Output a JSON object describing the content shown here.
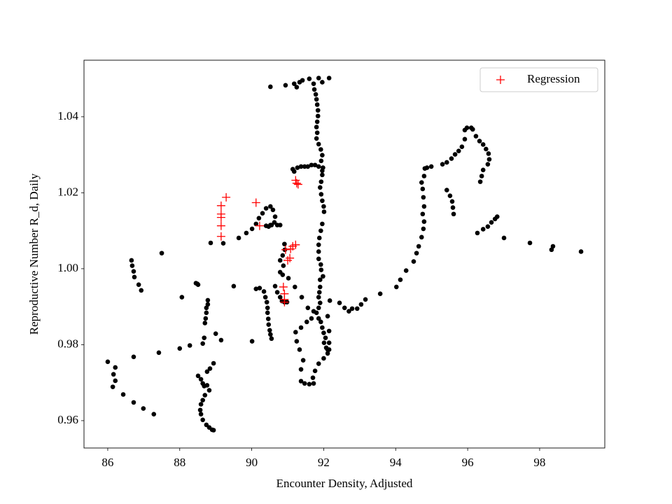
{
  "chart_data": {
    "type": "scatter",
    "x_label": "Encounter Density, Adjusted",
    "y_label": "Reproductive Number R_d, Daily",
    "xlim": [
      85.34,
      99.81
    ],
    "ylim": [
      0.9528,
      1.0549
    ],
    "xticks": [
      86,
      88,
      90,
      92,
      94,
      96,
      98
    ],
    "yticks": [
      0.96,
      0.98,
      {
        "value": 1,
        "label": "1.00"
      },
      1.02,
      1.04
    ],
    "grid": false,
    "legend": "upper right",
    "series": [
      {
        "color": "#000000",
        "marker": "dot",
        "x": [
          86.0,
          86.21,
          86.16,
          86.21,
          86.14,
          86.43,
          86.72,
          86.99,
          87.28,
          86.66,
          86.68,
          86.72,
          86.74,
          86.86,
          86.93,
          87.5,
          86.72,
          87.42,
          88.06,
          88.0,
          88.28,
          88.45,
          88.49,
          88.51,
          88.68,
          88.64,
          88.7,
          88.72,
          88.74,
          88.74,
          88.78,
          88.78,
          89.0,
          89.15,
          88.94,
          88.84,
          88.76,
          88.51,
          88.59,
          88.64,
          88.68,
          88.76,
          88.82,
          88.7,
          88.64,
          88.59,
          88.57,
          88.59,
          88.64,
          88.74,
          88.82,
          88.9,
          88.94,
          88.86,
          89.21,
          89.5,
          89.64,
          89.85,
          90.01,
          90.12,
          90.2,
          90.3,
          90.4,
          90.52,
          90.59,
          90.65,
          90.63,
          90.55,
          90.47,
          90.4,
          90.52,
          90.71,
          90.79,
          90.12,
          90.22,
          90.34,
          90.38,
          90.42,
          90.44,
          90.44,
          90.46,
          90.47,
          90.5,
          90.52,
          90.55,
          90.01,
          90.65,
          90.71,
          90.79,
          90.84,
          90.91,
          90.98,
          90.86,
          90.79,
          90.88,
          90.79,
          90.86,
          90.92,
          90.91,
          90.52,
          90.94,
          91.18,
          91.25,
          91.33,
          91.41,
          91.14,
          91.18,
          91.27,
          91.37,
          91.47,
          91.56,
          91.66,
          91.76,
          91.86,
          91.96,
          91.6,
          91.72,
          91.74,
          91.78,
          91.8,
          91.82,
          91.84,
          91.84,
          91.82,
          91.8,
          91.82,
          91.8,
          91.86,
          91.92,
          91.96,
          91.93,
          91.98,
          91.96,
          91.93,
          91.9,
          91.93,
          91.96,
          92.0,
          92.01,
          91.96,
          91.92,
          91.88,
          91.86,
          91.86,
          91.86,
          91.92,
          91.93,
          91.98,
          91.9,
          91.9,
          91.88,
          91.86,
          91.9,
          91.86,
          91.8,
          91.86,
          91.92,
          91.96,
          92.0,
          92.05,
          92.01,
          92.07,
          92.15,
          92.11,
          92.0,
          91.86,
          91.76,
          91.7,
          91.72,
          91.6,
          91.47,
          91.37,
          91.37,
          91.43,
          91.33,
          91.25,
          91.22,
          91.37,
          91.53,
          91.66,
          91.72,
          91.56,
          91.39,
          91.2,
          91.02,
          92.15,
          91.86,
          91.96,
          92.11,
          92.15,
          92.15,
          92.11,
          92.17,
          92.44,
          92.58,
          92.7,
          92.79,
          92.93,
          93.04,
          93.16,
          93.57,
          94.02,
          94.13,
          94.29,
          94.5,
          94.58,
          94.64,
          94.72,
          94.77,
          94.79,
          94.75,
          94.79,
          94.77,
          94.75,
          94.72,
          94.79,
          94.81,
          94.87,
          94.99,
          95.3,
          95.42,
          95.55,
          95.65,
          95.75,
          95.84,
          95.92,
          95.92,
          95.98,
          96.1,
          96.14,
          96.23,
          96.33,
          96.43,
          96.51,
          96.58,
          96.6,
          96.56,
          96.43,
          96.39,
          96.35,
          95.42,
          95.51,
          95.57,
          95.59,
          95.61,
          96.27,
          96.43,
          96.56,
          96.66,
          96.76,
          96.82,
          97.01,
          97.73,
          98.33,
          98.37,
          99.15
        ],
        "values": [
          0.9755,
          0.974,
          0.9722,
          0.9705,
          0.9689,
          0.9669,
          0.9648,
          0.9632,
          0.9617,
          1.0022,
          1.0008,
          0.9993,
          0.9978,
          0.9958,
          0.9943,
          1.0041,
          0.9768,
          0.9779,
          0.9925,
          0.979,
          0.9798,
          0.9962,
          0.996,
          0.9958,
          0.9818,
          0.9803,
          0.9857,
          0.9869,
          0.9884,
          0.9897,
          0.9906,
          0.9917,
          0.9829,
          0.9812,
          0.9751,
          0.9737,
          0.9729,
          0.9718,
          0.9709,
          0.9698,
          0.9691,
          0.9693,
          0.968,
          0.9667,
          0.9654,
          0.9643,
          0.9628,
          0.9617,
          0.9602,
          0.9589,
          0.9582,
          0.9576,
          0.9575,
          1.0068,
          1.0067,
          0.9954,
          1.0081,
          1.0094,
          1.0105,
          1.0118,
          1.0133,
          1.0146,
          1.0159,
          1.0164,
          1.0155,
          1.0137,
          1.0122,
          1.0115,
          1.0111,
          1.0113,
          1.0115,
          1.0115,
          1.0115,
          0.9947,
          0.9949,
          0.994,
          0.9925,
          0.9912,
          0.9897,
          0.9884,
          0.9868,
          0.9853,
          0.9838,
          0.9827,
          0.9816,
          0.9809,
          0.9954,
          0.9938,
          0.9925,
          0.9915,
          0.9912,
          0.9912,
          0.9984,
          0.9991,
          1.0008,
          1.0022,
          1.0035,
          1.005,
          1.0065,
          1.0479,
          1.0483,
          1.0487,
          1.0478,
          1.0491,
          1.0496,
          1.0262,
          1.0256,
          1.0266,
          1.0269,
          1.0269,
          1.0269,
          1.0273,
          1.0273,
          1.0269,
          1.0258,
          1.05,
          1.0487,
          1.0472,
          1.0459,
          1.0446,
          1.0432,
          1.0417,
          1.0402,
          1.0387,
          1.0373,
          1.0358,
          1.0343,
          1.0328,
          1.0314,
          1.0299,
          1.0284,
          1.0266,
          1.0247,
          1.0229,
          1.0214,
          1.0196,
          1.0179,
          1.0164,
          1.015,
          1.0118,
          1.01,
          1.0081,
          1.0063,
          1.0045,
          1.0026,
          1.0011,
          0.9997,
          0.998,
          0.9971,
          0.9952,
          0.9938,
          0.9925,
          0.991,
          0.9897,
          0.9884,
          0.9869,
          0.986,
          0.9845,
          0.9831,
          0.9818,
          0.9805,
          0.9792,
          0.9787,
          0.9777,
          0.9764,
          0.975,
          0.9731,
          0.9713,
          0.9698,
          0.9696,
          0.9698,
          0.9704,
          0.9735,
          0.9759,
          0.9787,
          0.9809,
          0.9833,
          0.9845,
          0.986,
          0.9869,
          0.9888,
          0.9897,
          0.9925,
          0.9952,
          0.9975,
          1.0502,
          1.0502,
          1.0491,
          0.9875,
          0.9836,
          0.9805,
          0.9787,
          0.9916,
          0.991,
          0.9897,
          0.9888,
          0.9895,
          0.9895,
          0.9906,
          0.9919,
          0.9934,
          0.9952,
          0.9971,
          0.9995,
          1.0019,
          1.0041,
          1.0059,
          1.0083,
          1.0105,
          1.0124,
          1.0144,
          1.0164,
          1.0188,
          1.021,
          1.0227,
          1.0244,
          1.0264,
          1.0266,
          1.0269,
          1.0275,
          1.028,
          1.029,
          1.0301,
          1.031,
          1.0321,
          1.0341,
          1.0365,
          1.0371,
          1.0371,
          1.0367,
          1.0349,
          1.0336,
          1.0327,
          1.0315,
          1.0303,
          1.0288,
          1.0275,
          1.026,
          1.0244,
          1.0229,
          1.0207,
          1.0192,
          1.0177,
          1.0161,
          1.0144,
          1.0094,
          1.0104,
          1.0111,
          1.0122,
          1.0131,
          1.0137,
          1.0081,
          1.0068,
          1.005,
          1.0059,
          1.0045
        ]
      },
      {
        "name": "Regression",
        "color": "#ff0000",
        "marker": "plus",
        "x": [
          89.15,
          89.15,
          89.15,
          89.15,
          89.15,
          89.29,
          90.12,
          90.22,
          91.22,
          91.29,
          91.25,
          90.94,
          91.0,
          91.06,
          91.14,
          91.22,
          91.08,
          90.88,
          90.91,
          90.91,
          90.91
        ],
        "values": [
          1.0166,
          1.0144,
          1.0135,
          1.0113,
          1.0085,
          1.0188,
          1.0174,
          1.0113,
          1.0233,
          1.0222,
          1.0225,
          1.005,
          1.0022,
          1.0028,
          1.0059,
          1.0063,
          1.0052,
          0.9952,
          0.9934,
          0.9919,
          0.9912
        ]
      }
    ]
  }
}
